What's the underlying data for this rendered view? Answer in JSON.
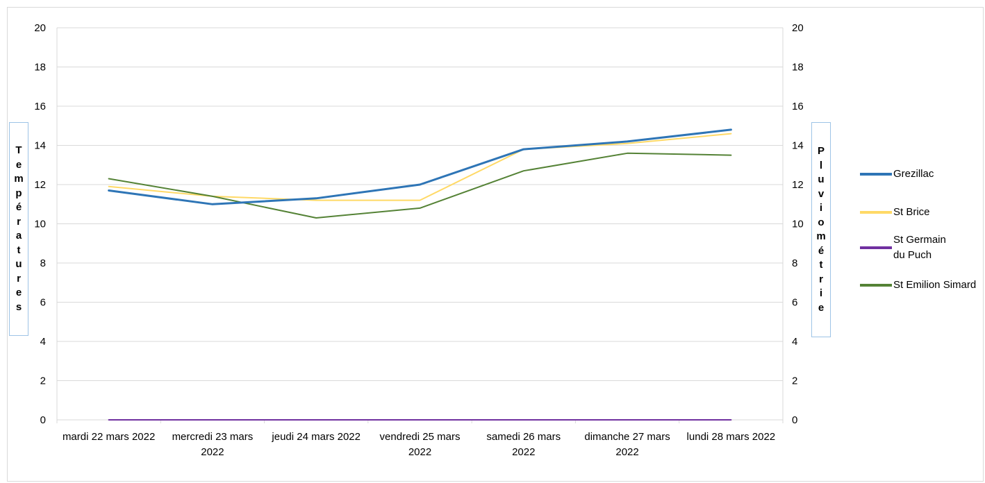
{
  "chart_data": {
    "type": "line",
    "categories": [
      "mardi 22 mars 2022",
      "mercredi 23 mars 2022",
      "jeudi 24 mars 2022",
      "vendredi 25 mars 2022",
      "samedi 26 mars 2022",
      "dimanche 27 mars 2022",
      "lundi 28 mars 2022"
    ],
    "category_lines": [
      [
        "mardi 22 mars 2022"
      ],
      [
        "mercredi 23 mars",
        "2022"
      ],
      [
        "jeudi 24 mars 2022"
      ],
      [
        "vendredi 25 mars",
        "2022"
      ],
      [
        "samedi 26 mars",
        "2022"
      ],
      [
        "dimanche 27 mars",
        "2022"
      ],
      [
        "lundi 28 mars 2022"
      ]
    ],
    "series": [
      {
        "name": "Grezillac",
        "values": [
          11.7,
          11.0,
          11.3,
          12.0,
          13.8,
          14.2,
          14.8
        ],
        "color": "#2e75b6",
        "width": 3
      },
      {
        "name": "St Brice",
        "values": [
          11.9,
          11.4,
          11.2,
          11.2,
          13.8,
          14.1,
          14.6
        ],
        "color": "#ffd966",
        "width": 2
      },
      {
        "name": "St Germain du Puch",
        "values": [
          0,
          0,
          0,
          0,
          0,
          0,
          0
        ],
        "color": "#7030a0",
        "width": 2
      },
      {
        "name": "St Emilion Simard",
        "values": [
          12.3,
          11.4,
          10.3,
          10.8,
          12.7,
          13.6,
          13.5
        ],
        "color": "#548235",
        "width": 2
      }
    ],
    "legend_lines": [
      [
        "Grezillac"
      ],
      [
        "St Brice"
      ],
      [
        "St Germain",
        "du Puch"
      ],
      [
        "St Emilion Simard"
      ]
    ],
    "ylabel": "Températures",
    "y2label": "Pluviométrie",
    "ylim": [
      0,
      20
    ],
    "y2lim": [
      0,
      20
    ],
    "y_ticks": [
      0,
      2,
      4,
      6,
      8,
      10,
      12,
      14,
      16,
      18,
      20
    ],
    "grid": true,
    "legend": "right"
  }
}
